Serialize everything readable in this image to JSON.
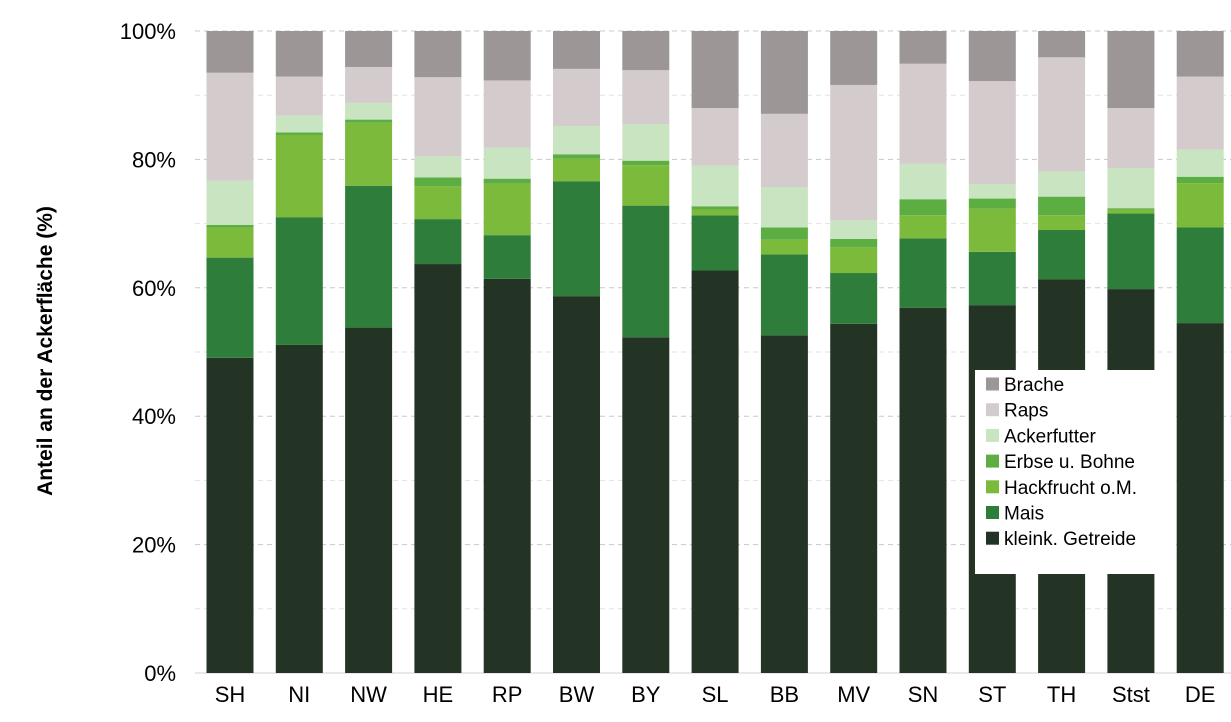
{
  "chart_data": {
    "type": "bar",
    "stacked": true,
    "percent_stacked": true,
    "ylabel": "Anteil an der Ackerfläche (%)",
    "xlabel": "",
    "ylim": [
      0,
      100
    ],
    "yticks": [
      "0%",
      "20%",
      "40%",
      "60%",
      "80%",
      "100%"
    ],
    "grid": "horizontal dashed",
    "legend_position": "right-bottom inside",
    "categories": [
      "SH",
      "NI",
      "NW",
      "HE",
      "RP",
      "BW",
      "BY",
      "SL",
      "BB",
      "MV",
      "SN",
      "ST",
      "TH",
      "Stst",
      "DE"
    ],
    "series": [
      {
        "name": "kleink. Getreide",
        "color": "#243424",
        "values": [
          49.1,
          51.1,
          53.8,
          63.7,
          61.4,
          58.7,
          52.3,
          62.7,
          52.6,
          54.4,
          56.9,
          57.3,
          61.3,
          59.8,
          54.5
        ]
      },
      {
        "name": "Mais",
        "color": "#2e7d3a",
        "values": [
          15.6,
          19.9,
          22.1,
          7.0,
          6.8,
          17.9,
          20.5,
          8.6,
          12.6,
          7.9,
          10.8,
          8.3,
          7.7,
          11.8,
          14.9
        ]
      },
      {
        "name": "Hackfrucht o.M.",
        "color": "#7cba3c",
        "values": [
          4.7,
          12.8,
          9.8,
          5.1,
          8.0,
          3.5,
          6.3,
          0.9,
          2.3,
          4.0,
          3.6,
          6.7,
          2.3,
          0.6,
          6.9
        ]
      },
      {
        "name": "Erbse u. Bohne",
        "color": "#5cae43",
        "values": [
          0.4,
          0.4,
          0.5,
          1.4,
          0.8,
          0.7,
          0.7,
          0.5,
          1.9,
          1.3,
          2.5,
          1.6,
          2.9,
          0.2,
          1.0
        ]
      },
      {
        "name": "Ackerfutter",
        "color": "#c9e4c1",
        "values": [
          6.9,
          2.6,
          2.6,
          3.3,
          4.8,
          4.4,
          5.7,
          6.3,
          6.3,
          2.9,
          5.5,
          2.2,
          3.9,
          6.2,
          4.2
        ]
      },
      {
        "name": "Raps",
        "color": "#d4cccc",
        "values": [
          16.8,
          6.1,
          5.6,
          12.3,
          10.5,
          8.9,
          8.4,
          9.0,
          11.4,
          21.1,
          15.6,
          16.1,
          17.8,
          9.4,
          11.4
        ]
      },
      {
        "name": "Brache",
        "color": "#9c9696",
        "values": [
          6.5,
          7.1,
          5.6,
          7.2,
          7.7,
          5.9,
          6.1,
          12.0,
          12.9,
          8.4,
          5.1,
          7.8,
          4.1,
          12.0,
          7.1
        ]
      }
    ]
  }
}
